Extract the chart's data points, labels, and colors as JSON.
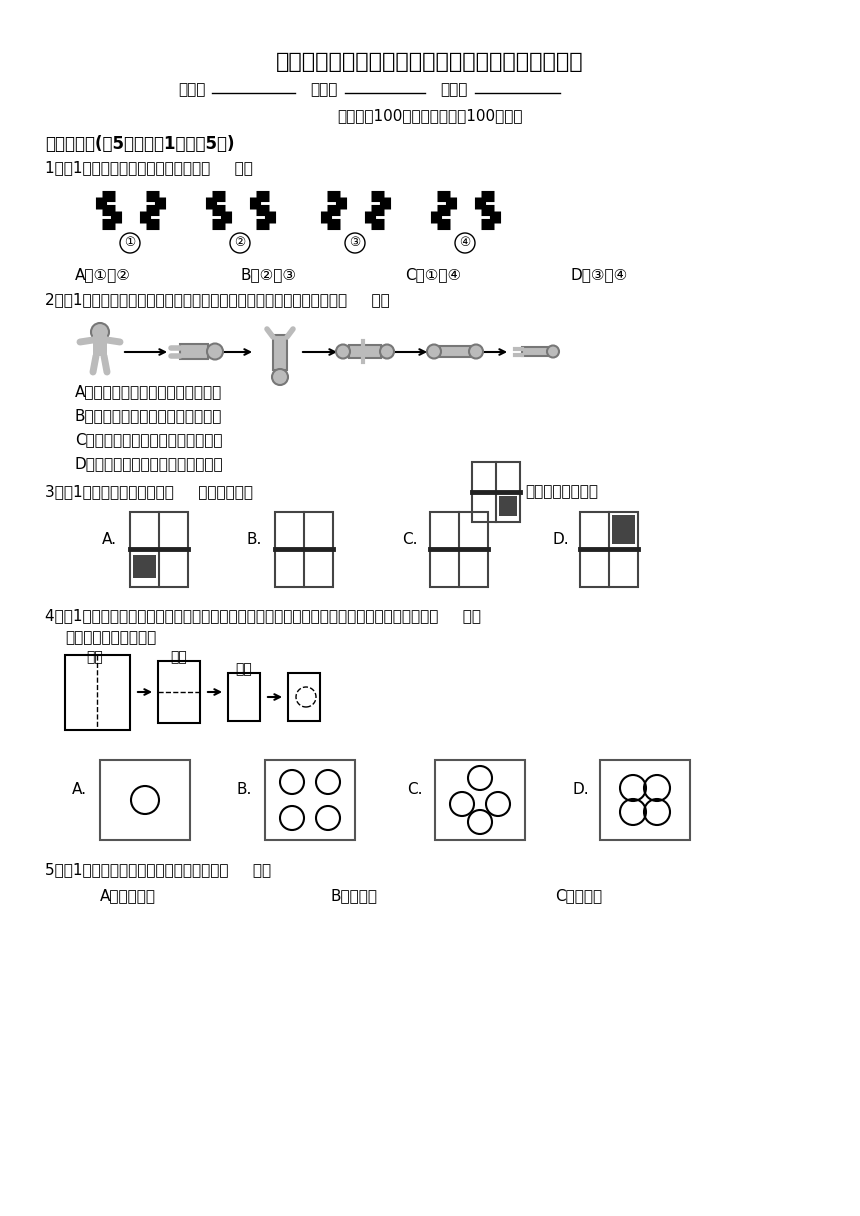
{
  "title": "三年级上册第六单元《平移、旋转和轴对称》测试卷",
  "subtitle_info": "（满分：100分，完成时间：100分钟）",
  "section1_title": "一、选择题(共5题；每题1分，共5分)",
  "q1_text": "1．（1分）下列属于轴对称图形的是（     ）。",
  "q1_options": [
    "A．①和②",
    "B．②和③",
    "C．①和④",
    "D．③和④"
  ],
  "q2_text": "2．（1分）导演让一位木偶演员做下面的动作，描述这些动作正确的是（     ）。",
  "q2_options": [
    "A．旋转、旋转、旋转、平移、平移",
    "B．旋转、平移、旋转、平移、旋转",
    "C．旋转、旋转、平移、平移、平移",
    "D．旋转、平移、旋转、平移、平移"
  ],
  "q3_text1": "3．（1分）下面的图形中，（     ）不能由通过",
  "q3_text2": "平移或旋转得到。",
  "q4_text": "4．（1分）如下图，小明将一张正方形纸左右对折，再上下对折，然后剪去一个圆。展开图为（     ）。",
  "q4_subtext": "（虚线为折痕或剪线）",
  "q4_labels": [
    "对折",
    "对折",
    "剪去"
  ],
  "q5_text": "5．（1分）下面的游戏属于平移现象的是（     ）。",
  "q5_options": [
    "A．拧水龙头",
    "B．玩陀螺",
    "C．玩滑梯"
  ],
  "bg_color": "#ffffff",
  "text_color": "#000000"
}
